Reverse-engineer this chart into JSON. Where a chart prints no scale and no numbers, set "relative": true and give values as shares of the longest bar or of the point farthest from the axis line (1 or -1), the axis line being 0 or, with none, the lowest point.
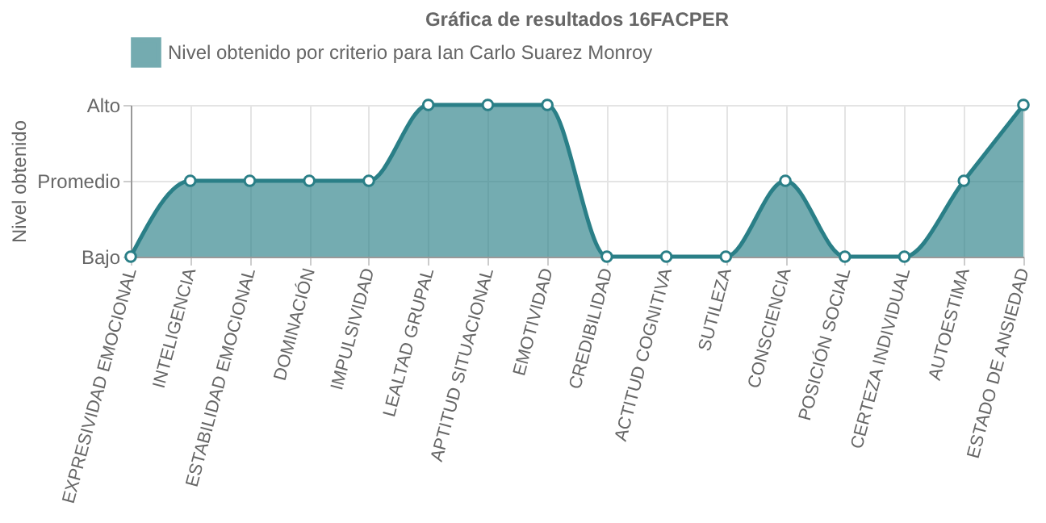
{
  "chart_data": {
    "type": "area",
    "title": "Gráfica de resultados 16FACPER",
    "ylabel": "Nivel obtenido",
    "categories": [
      "EXPRESIVIDAD EMOCIONAL",
      "INTELIGENCIA",
      "ESTABILIDAD EMOCIONAL",
      "DOMINACIÓN",
      "IMPULSIVIDAD",
      "LEALTAD GRUPAL",
      "APTITUD SITUACIONAL",
      "EMOTIVIDAD",
      "CREDIBILIDAD",
      "ACTITUD COGNITIVA",
      "SUTILEZA",
      "CONSCIENCIA",
      "POSICIÓN SOCIAL",
      "CERTEZA INDIVIDUAL",
      "AUTOESTIMA",
      "ESTADO DE ANSIEDAD"
    ],
    "series": [
      {
        "name": "Nivel obtenido por criterio para Ian Carlo Suarez Monroy",
        "color": "#2a7f87",
        "values": [
          0,
          0.5,
          0.5,
          0.5,
          0.5,
          1,
          1,
          1,
          0,
          0,
          0,
          0.5,
          0,
          0,
          0.5,
          1
        ]
      }
    ],
    "relative": true,
    "annotations": [
      "Bajo",
      "Promedio",
      "Alto"
    ],
    "grid": true,
    "legend": "top",
    "marker": "circle"
  }
}
